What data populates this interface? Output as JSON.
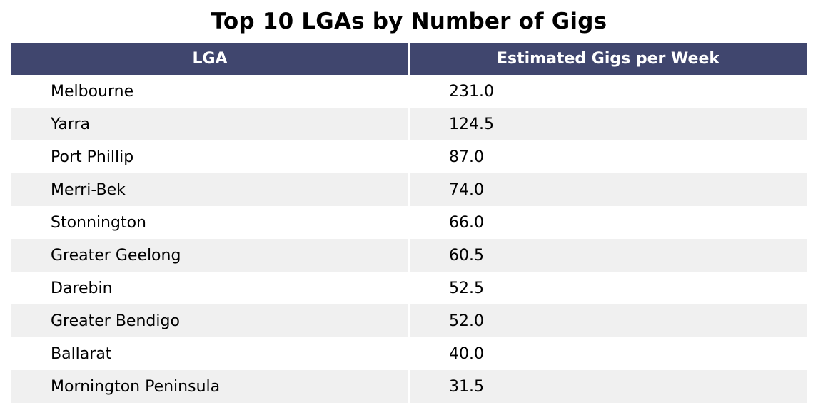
{
  "title": "Top 10 LGAs by Number of Gigs",
  "chart_data": {
    "type": "table",
    "title": "Top 10 LGAs by Number of Gigs",
    "columns": [
      "LGA",
      "Estimated Gigs per Week"
    ],
    "rows": [
      [
        "Melbourne",
        "231.0"
      ],
      [
        "Yarra",
        "124.5"
      ],
      [
        "Port Phillip",
        "87.0"
      ],
      [
        "Merri-Bek",
        "74.0"
      ],
      [
        "Stonnington",
        "66.0"
      ],
      [
        "Greater Geelong",
        "60.5"
      ],
      [
        "Darebin",
        "52.5"
      ],
      [
        "Greater Bendigo",
        "52.0"
      ],
      [
        "Ballarat",
        "40.0"
      ],
      [
        "Mornington Peninsula",
        "31.5"
      ]
    ]
  },
  "colors": {
    "header_bg": "#40466e",
    "header_text": "#ffffff",
    "row_alt_bg": "#f0f0f0",
    "row_bg": "#ffffff"
  }
}
